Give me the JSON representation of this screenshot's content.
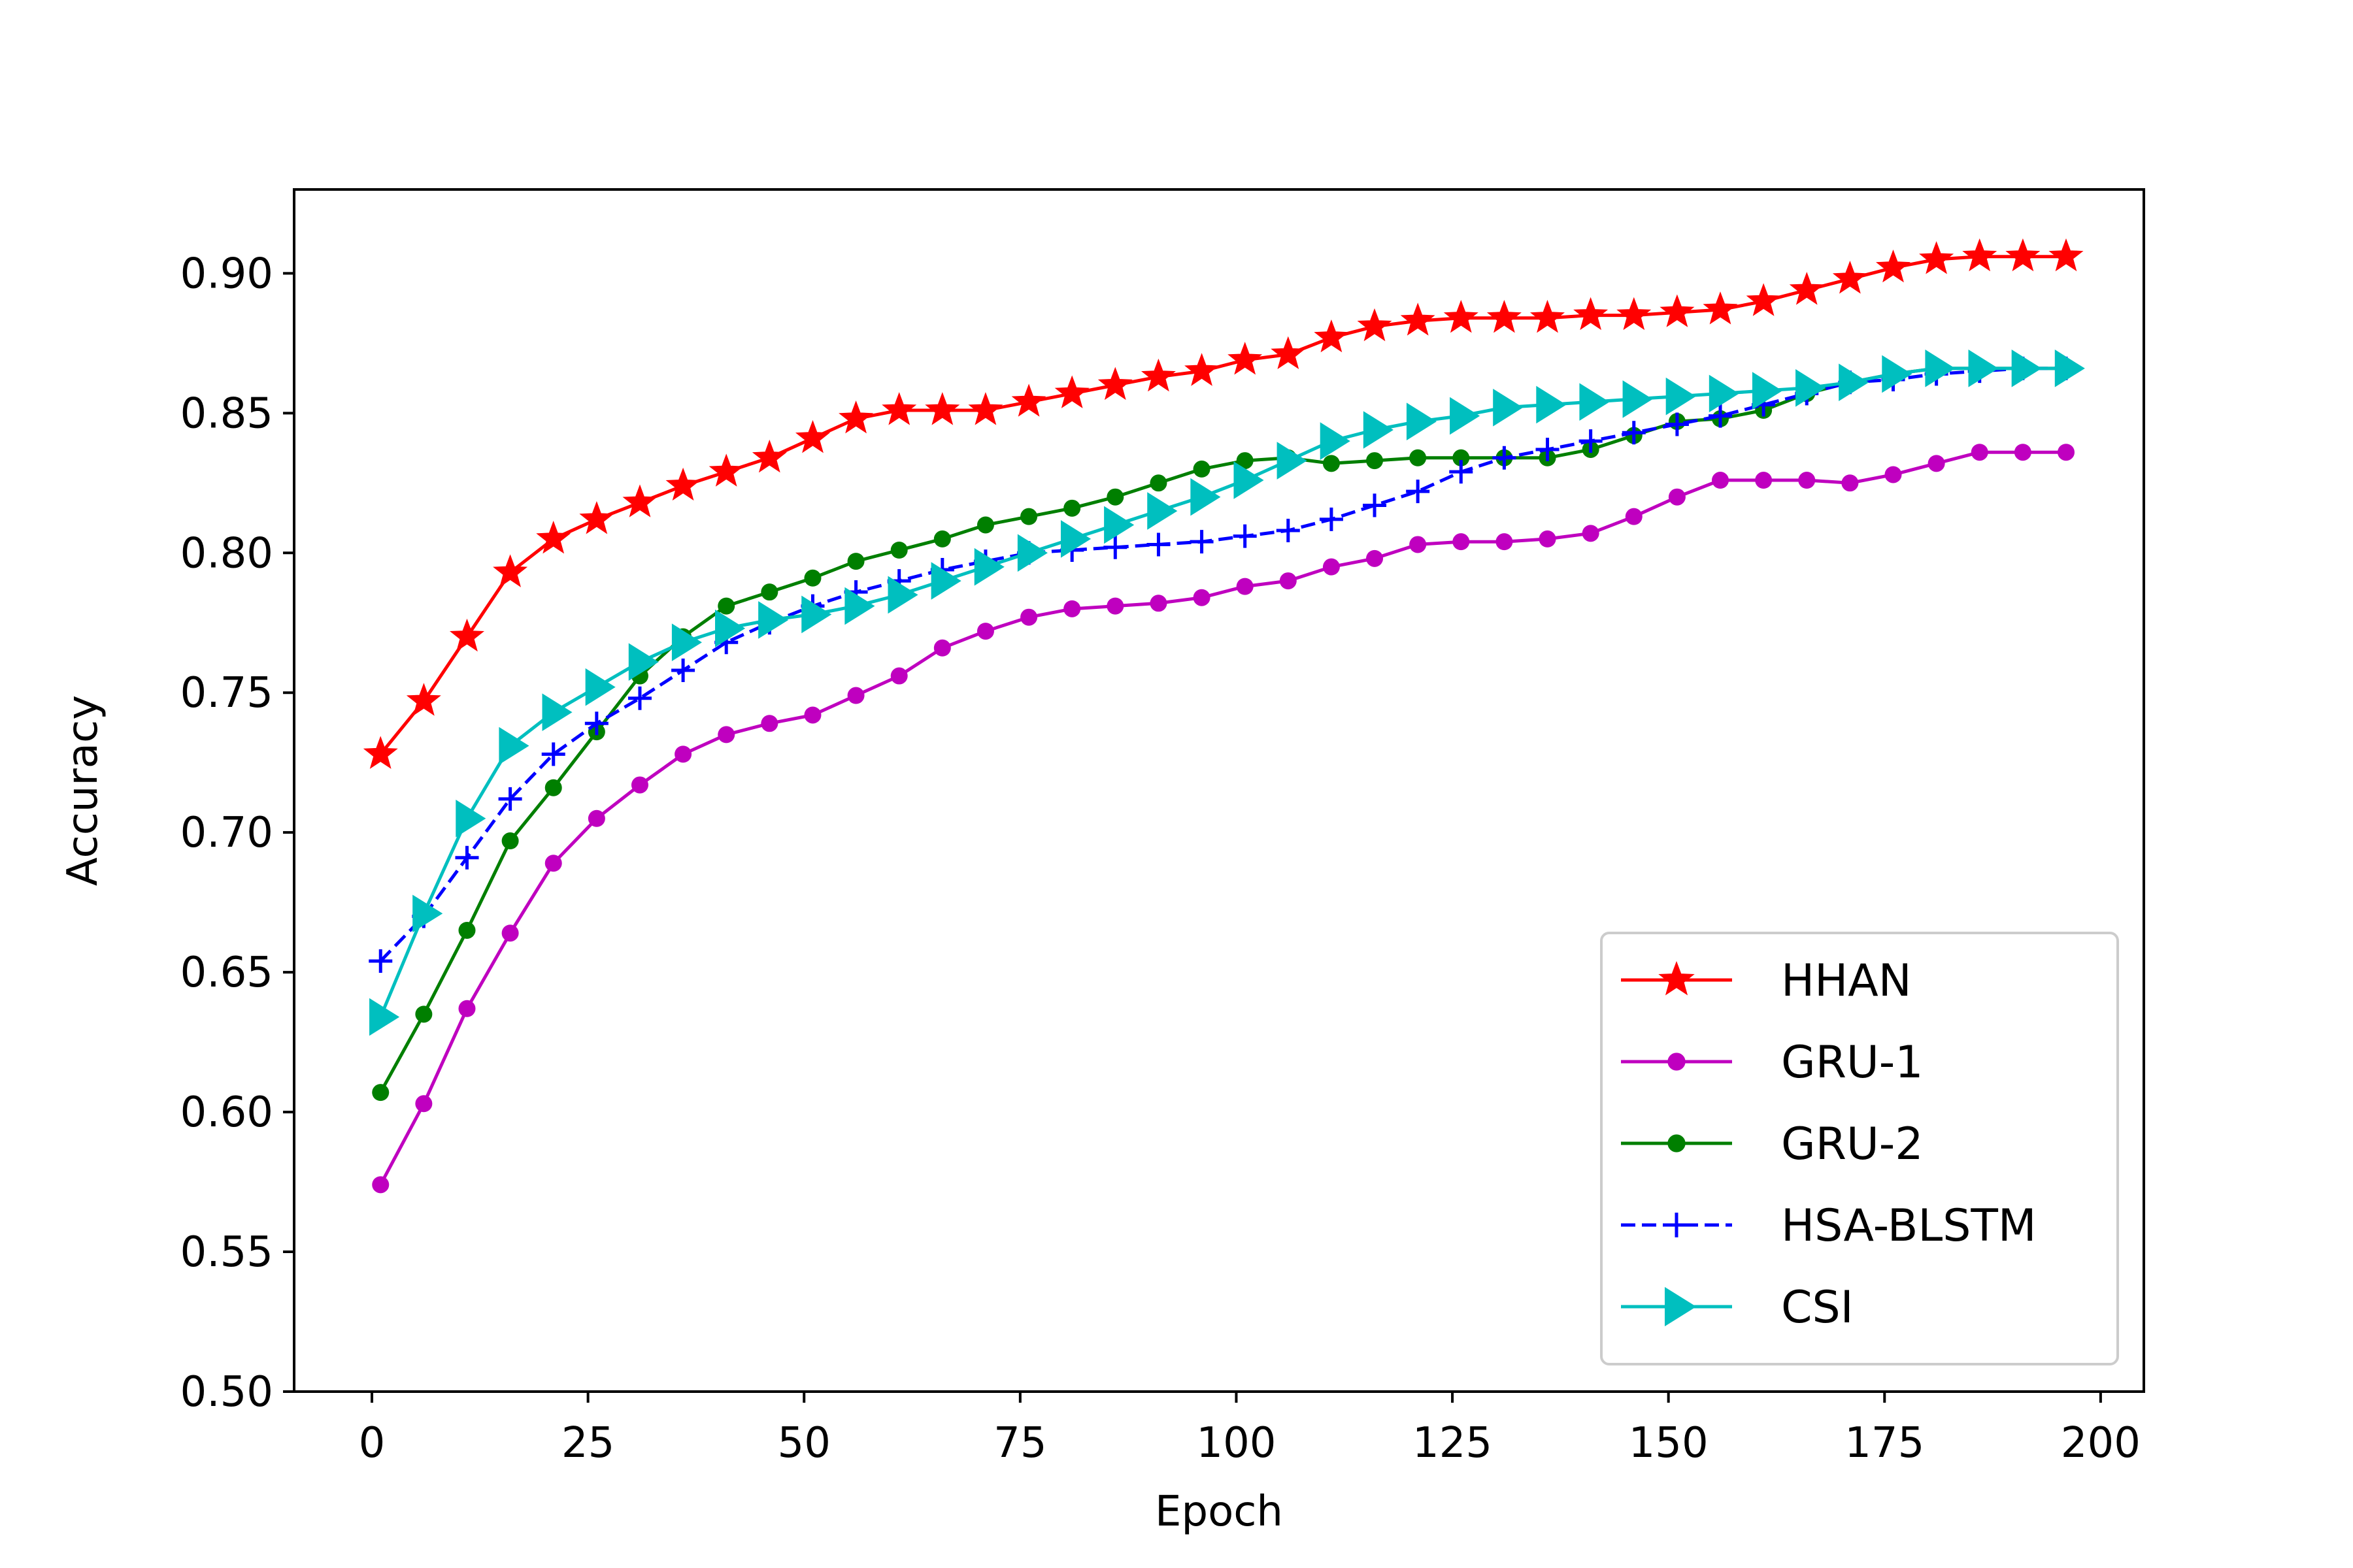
{
  "chart_data": {
    "type": "line",
    "title": "",
    "xlabel": "Epoch",
    "ylabel": "Accuracy",
    "xlim": [
      -9,
      205
    ],
    "ylim": [
      0.5,
      0.93
    ],
    "xticks": [
      0,
      25,
      50,
      75,
      100,
      125,
      150,
      175,
      200
    ],
    "yticks": [
      0.5,
      0.55,
      0.6,
      0.65,
      0.7,
      0.75,
      0.8,
      0.85,
      0.9
    ],
    "ytick_labels": [
      "0.50",
      "0.55",
      "0.60",
      "0.65",
      "0.70",
      "0.75",
      "0.80",
      "0.85",
      "0.90"
    ],
    "grid": false,
    "legend_position": "lower-right",
    "x": [
      1,
      6,
      11,
      16,
      21,
      26,
      31,
      36,
      41,
      46,
      51,
      56,
      61,
      66,
      71,
      76,
      81,
      86,
      91,
      96,
      101,
      106,
      111,
      116,
      121,
      126,
      131,
      136,
      141,
      146,
      151,
      156,
      161,
      166,
      171,
      176,
      181,
      186,
      191,
      196
    ],
    "series": [
      {
        "name": "HHAN",
        "color": "#ff0000",
        "marker": "star",
        "linestyle": "solid",
        "values": [
          0.728,
          0.747,
          0.77,
          0.793,
          0.805,
          0.812,
          0.818,
          0.824,
          0.829,
          0.834,
          0.841,
          0.848,
          0.851,
          0.851,
          0.851,
          0.854,
          0.857,
          0.86,
          0.863,
          0.865,
          0.869,
          0.871,
          0.877,
          0.881,
          0.883,
          0.884,
          0.884,
          0.884,
          0.885,
          0.885,
          0.886,
          0.887,
          0.89,
          0.894,
          0.898,
          0.902,
          0.905,
          0.906,
          0.906,
          0.906
        ]
      },
      {
        "name": "GRU-1",
        "color": "#bf00bf",
        "marker": "dot",
        "linestyle": "solid",
        "values": [
          0.574,
          0.603,
          0.637,
          0.664,
          0.689,
          0.705,
          0.717,
          0.728,
          0.735,
          0.739,
          0.742,
          0.749,
          0.756,
          0.766,
          0.772,
          0.777,
          0.78,
          0.781,
          0.782,
          0.784,
          0.788,
          0.79,
          0.795,
          0.798,
          0.803,
          0.804,
          0.804,
          0.805,
          0.807,
          0.813,
          0.82,
          0.826,
          0.826,
          0.826,
          0.825,
          0.828,
          0.832,
          0.836,
          0.836,
          0.836
        ]
      },
      {
        "name": "GRU-2",
        "color": "#007f00",
        "marker": "dot",
        "linestyle": "solid",
        "values": [
          0.607,
          0.635,
          0.665,
          0.697,
          0.716,
          0.736,
          0.756,
          0.77,
          0.781,
          0.786,
          0.791,
          0.797,
          0.801,
          0.805,
          0.81,
          0.813,
          0.816,
          0.82,
          0.825,
          0.83,
          0.833,
          0.834,
          0.832,
          0.833,
          0.834,
          0.834,
          0.834,
          0.834,
          0.837,
          0.842,
          0.847,
          0.848,
          0.851,
          0.857,
          0.861,
          0.864,
          0.866,
          0.866,
          0.866,
          0.866
        ]
      },
      {
        "name": "HSA-BLSTM",
        "color": "#0000ff",
        "marker": "plus",
        "linestyle": "dashed",
        "values": [
          0.654,
          0.67,
          0.691,
          0.712,
          0.728,
          0.739,
          0.748,
          0.758,
          0.768,
          0.775,
          0.781,
          0.786,
          0.79,
          0.794,
          0.797,
          0.8,
          0.801,
          0.802,
          0.803,
          0.804,
          0.806,
          0.808,
          0.812,
          0.817,
          0.822,
          0.829,
          0.834,
          0.837,
          0.84,
          0.843,
          0.846,
          0.849,
          0.853,
          0.857,
          0.861,
          0.862,
          0.864,
          0.865,
          0.866,
          0.866
        ]
      },
      {
        "name": "CSI",
        "color": "#00bfbf",
        "marker": "triangle-right",
        "linestyle": "solid",
        "values": [
          0.634,
          0.671,
          0.705,
          0.731,
          0.743,
          0.752,
          0.761,
          0.768,
          0.773,
          0.776,
          0.778,
          0.781,
          0.785,
          0.79,
          0.795,
          0.8,
          0.805,
          0.81,
          0.815,
          0.82,
          0.826,
          0.833,
          0.84,
          0.844,
          0.847,
          0.849,
          0.852,
          0.853,
          0.854,
          0.855,
          0.856,
          0.857,
          0.858,
          0.859,
          0.861,
          0.864,
          0.866,
          0.866,
          0.866,
          0.866
        ]
      }
    ]
  }
}
